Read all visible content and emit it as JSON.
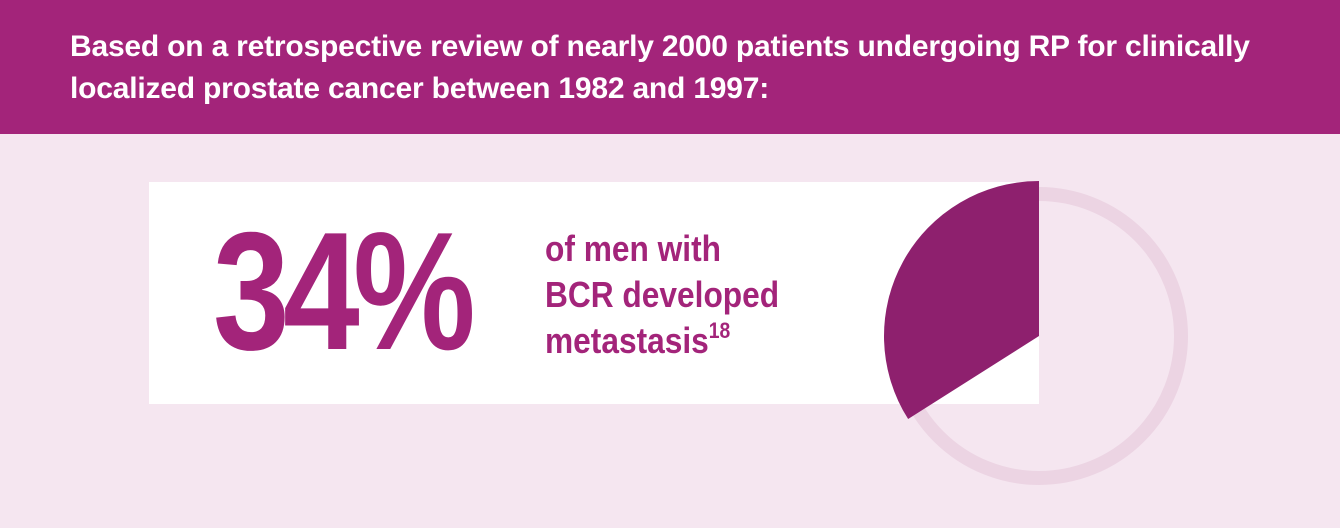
{
  "header": {
    "text": "Based on a retrospective review of nearly 2000 patients undergoing RP for clinically localized prostate cancer between 1982 and 1997:"
  },
  "stat": {
    "percent_label": "34%",
    "fraction": 0.34,
    "caption_line1": "of men with",
    "caption_line2": "BCR developed",
    "caption_line3": "metastasis",
    "reference": "18"
  },
  "colors": {
    "header_bg": "#a3247a",
    "page_bg": "#f5e6f0",
    "accent": "#a3247a",
    "slice": "#8e206e",
    "ring": "#ecd4e3"
  }
}
